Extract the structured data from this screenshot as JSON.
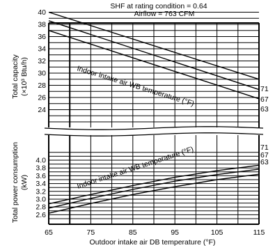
{
  "chart_data": {
    "type": "line",
    "header": {
      "shf": "SHF at rating condition = 0.64",
      "airflow": "Airflow = 763 CFM"
    },
    "xlabel": "Outdoor intake air DB temperature (°F)",
    "x_ticks": [
      65,
      75,
      85,
      95,
      105,
      115
    ],
    "xlim": [
      65,
      115
    ],
    "upper_panel": {
      "ylabel_line1": "Total capacity",
      "ylabel_line2": "(×10³ Btu/h)",
      "ylim": [
        22,
        40
      ],
      "y_ticks": [
        24,
        26,
        28,
        30,
        32,
        34,
        36,
        38,
        40
      ],
      "annotation": "Indoor intake air WB temperature (°F)",
      "series": [
        {
          "name": "71",
          "x": [
            65,
            115
          ],
          "values": [
            40.0,
            29.0
          ]
        },
        {
          "name": "67",
          "x": [
            65,
            115
          ],
          "values": [
            38.6,
            27.3
          ]
        },
        {
          "name": "63",
          "x": [
            65,
            115
          ],
          "values": [
            37.0,
            25.8
          ]
        }
      ]
    },
    "lower_panel": {
      "ylabel_line1": "Total power consumption",
      "ylabel_line2": "(kW)",
      "ylim": [
        2.5,
        4.2
      ],
      "y_ticks": [
        2.6,
        2.8,
        3.0,
        3.2,
        3.4,
        3.6,
        3.8,
        4.0
      ],
      "annotation": "Indoor intake air WB temperature (°F)",
      "series": [
        {
          "name": "71",
          "x": [
            65,
            75,
            85,
            95,
            105,
            115
          ],
          "values": [
            2.88,
            3.12,
            3.35,
            3.56,
            3.73,
            3.87
          ]
        },
        {
          "name": "67",
          "x": [
            65,
            75,
            85,
            95,
            105,
            115
          ],
          "values": [
            2.77,
            3.02,
            3.25,
            3.46,
            3.63,
            3.77
          ]
        },
        {
          "name": "63",
          "x": [
            65,
            75,
            85,
            95,
            105,
            115
          ],
          "values": [
            2.64,
            2.89,
            3.12,
            3.32,
            3.5,
            3.64
          ]
        }
      ]
    }
  }
}
